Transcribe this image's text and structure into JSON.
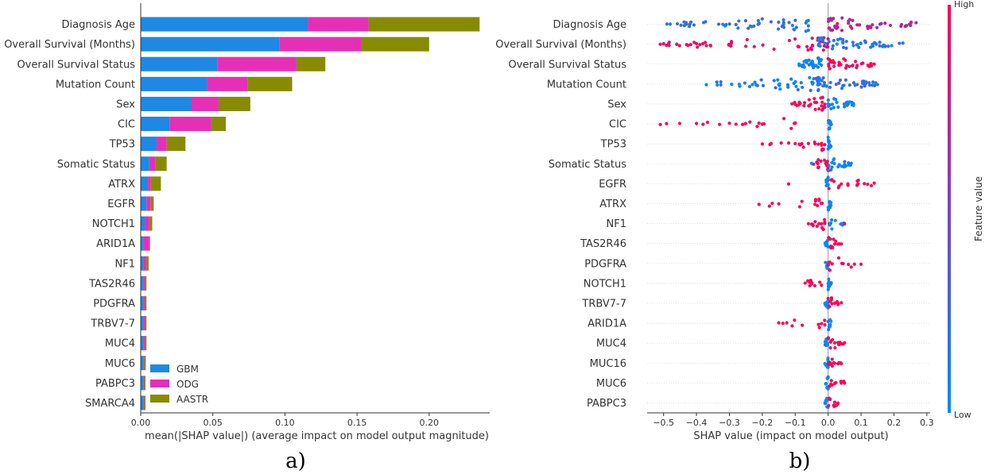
{
  "chart_data": [
    {
      "type": "bar",
      "orientation": "horizontal",
      "stacked": true,
      "panel_label": "a)",
      "xlabel": "mean(|SHAP value|) (average impact on model output magnitude)",
      "xlim": [
        0,
        0.242
      ],
      "xticks": [
        "0.00",
        "0.05",
        "0.10",
        "0.15",
        "0.20"
      ],
      "categories": [
        "Diagnosis Age",
        "Overall Survival (Months)",
        "Overall Survival Status",
        "Mutation Count",
        "Sex",
        "CIC",
        "TP53",
        "Somatic Status",
        "ATRX",
        "EGFR",
        "NOTCH1",
        "ARID1A",
        "NF1",
        "TAS2R46",
        "PDGFRA",
        "TRBV7-7",
        "MUC4",
        "MUC6",
        "PABPC3",
        "SMARCA4"
      ],
      "series": [
        {
          "name": "GBM",
          "color": "#1E88E5",
          "values": [
            0.116,
            0.096,
            0.053,
            0.046,
            0.035,
            0.02,
            0.011,
            0.006,
            0.005,
            0.004,
            0.003,
            0.002,
            0.002,
            0.002,
            0.002,
            0.002,
            0.002,
            0.002,
            0.002,
            0.002
          ]
        },
        {
          "name": "ODG",
          "color": "#E52FB7",
          "values": [
            0.042,
            0.057,
            0.055,
            0.028,
            0.019,
            0.029,
            0.007,
            0.004,
            0.002,
            0.003,
            0.003,
            0.004,
            0.002,
            0.001,
            0.001,
            0.001,
            0.001,
            0.0005,
            0.0005,
            0.0005
          ]
        },
        {
          "name": "AASTR",
          "color": "#868B00",
          "values": [
            0.077,
            0.047,
            0.02,
            0.031,
            0.022,
            0.01,
            0.013,
            0.008,
            0.007,
            0.002,
            0.002,
            0.0005,
            0.0015,
            0.001,
            0.001,
            0.001,
            0.001,
            0.001,
            0.0008,
            0.0008
          ]
        }
      ],
      "legend": {
        "placement": "lower-center",
        "entries": [
          "GBM",
          "ODG",
          "AASTR"
        ]
      }
    },
    {
      "type": "scatter",
      "subtype": "beeswarm",
      "panel_label": "b)",
      "xlabel": "SHAP value (impact on model output)",
      "xlim": [
        -0.55,
        0.31
      ],
      "xticks": [
        "−0.5",
        "−0.4",
        "−0.3",
        "−0.2",
        "−0.1",
        "0.0",
        "0.1",
        "0.2",
        "0.3"
      ],
      "zero_line": true,
      "colorbar": {
        "label": "Feature value",
        "high_label": "High",
        "low_label": "Low",
        "low_color": "#008BFB",
        "high_color": "#FF0052"
      },
      "features": [
        {
          "name": "Diagnosis Age",
          "neg": [
            -0.5,
            -0.06
          ],
          "pos": [
            0.0,
            0.27
          ],
          "neg_val": 0.18,
          "pos_val": 0.7,
          "outliers": [
            [
              -0.49,
              0.1
            ],
            [
              -0.48,
              0.1
            ],
            [
              -0.43,
              0.1
            ],
            [
              -0.42,
              0.1
            ],
            [
              -0.32,
              0.1
            ],
            [
              -0.31,
              0.1
            ],
            [
              -0.28,
              0.3
            ]
          ],
          "density": 80
        },
        {
          "name": "Overall Survival (Months)",
          "neg": [
            -0.52,
            0.0
          ],
          "pos": [
            -0.03,
            0.23
          ],
          "neg_val": 0.88,
          "pos_val": 0.12,
          "outliers": [
            [
              -0.51,
              0.95
            ],
            [
              -0.5,
              0.95
            ],
            [
              -0.46,
              0.95
            ],
            [
              -0.43,
              0.95
            ],
            [
              -0.4,
              0.95
            ],
            [
              -0.39,
              0.95
            ]
          ],
          "density": 85
        },
        {
          "name": "Overall Survival Status",
          "neg": [
            -0.09,
            -0.02
          ],
          "pos": [
            0.0,
            0.14
          ],
          "neg_val": 0.02,
          "pos_val": 0.98,
          "outliers": [
            [
              0.13,
              0.98
            ],
            [
              0.14,
              0.98
            ]
          ],
          "density": 55
        },
        {
          "name": "Mutation Count",
          "neg": [
            -0.37,
            -0.03
          ],
          "pos": [
            -0.03,
            0.15
          ],
          "neg_val": 0.12,
          "pos_val": 0.2,
          "outliers": [
            [
              -0.37,
              0.05
            ],
            [
              -0.27,
              0.05
            ],
            [
              -0.23,
              0.05
            ],
            [
              -0.15,
              0.05
            ],
            [
              0.15,
              0.1
            ]
          ],
          "density": 75
        },
        {
          "name": "Sex",
          "neg": [
            -0.11,
            -0.01
          ],
          "pos": [
            0.0,
            0.08
          ],
          "neg_val": 0.98,
          "pos_val": 0.02,
          "outliers": [
            [
              -0.11,
              1.0
            ],
            [
              -0.1,
              1.0
            ]
          ],
          "density": 45
        },
        {
          "name": "CIC",
          "neg": [
            -0.51,
            -0.1
          ],
          "pos": [
            0.0,
            0.01
          ],
          "neg_val": 1.0,
          "pos_val": 0.02,
          "outliers": [
            [
              -0.51,
              1.0
            ],
            [
              -0.4,
              1.0
            ],
            [
              -0.38,
              1.0
            ],
            [
              -0.33,
              1.0
            ],
            [
              -0.3,
              1.0
            ],
            [
              -0.28,
              1.0
            ],
            [
              -0.26,
              1.0
            ],
            [
              -0.2,
              1.0
            ],
            [
              -0.21,
              1.0
            ],
            [
              -0.1,
              1.0
            ]
          ],
          "density": 20
        },
        {
          "name": "TP53",
          "neg": [
            -0.2,
            -0.01
          ],
          "pos": [
            0.0,
            0.01
          ],
          "neg_val": 1.0,
          "pos_val": 0.02,
          "outliers": [
            [
              -0.2,
              1.0
            ],
            [
              -0.12,
              1.0
            ],
            [
              -0.1,
              1.0
            ],
            [
              -0.08,
              1.0
            ],
            [
              -0.06,
              1.0
            ],
            [
              -0.04,
              1.0
            ],
            [
              -0.03,
              1.0
            ],
            [
              -0.02,
              1.0
            ]
          ],
          "density": 22
        },
        {
          "name": "Somatic Status",
          "neg": [
            -0.05,
            0.0
          ],
          "pos": [
            0.0,
            0.07
          ],
          "neg_val": 0.95,
          "pos_val": 0.05,
          "outliers": [
            [
              -0.05,
              0.05
            ],
            [
              0.05,
              0.05
            ],
            [
              0.07,
              0.05
            ]
          ],
          "density": 30
        },
        {
          "name": "EGFR",
          "neg": [
            -0.01,
            0.0
          ],
          "pos": [
            0.0,
            0.14
          ],
          "neg_val": 0.02,
          "pos_val": 1.0,
          "outliers": [
            [
              -0.12,
              1.0
            ],
            [
              0.04,
              1.0
            ],
            [
              0.06,
              1.0
            ],
            [
              0.09,
              1.0
            ],
            [
              0.11,
              1.0
            ],
            [
              0.12,
              1.0
            ],
            [
              0.14,
              1.0
            ]
          ],
          "density": 22
        },
        {
          "name": "ATRX",
          "neg": [
            -0.21,
            -0.01
          ],
          "pos": [
            0.0,
            0.01
          ],
          "neg_val": 1.0,
          "pos_val": 0.02,
          "outliers": [
            [
              -0.21,
              1.0
            ],
            [
              -0.17,
              1.0
            ],
            [
              -0.15,
              1.0
            ],
            [
              -0.04,
              1.0
            ]
          ],
          "density": 18
        },
        {
          "name": "NF1",
          "neg": [
            -0.06,
            -0.01
          ],
          "pos": [
            0.0,
            0.05
          ],
          "neg_val": 1.0,
          "pos_val": 0.02,
          "outliers": [
            [
              -0.06,
              1.0
            ],
            [
              -0.05,
              1.0
            ],
            [
              -0.02,
              1.0
            ],
            [
              0.05,
              1.0
            ]
          ],
          "density": 18
        },
        {
          "name": "TAS2R46",
          "neg": [
            -0.01,
            0.0
          ],
          "pos": [
            0.0,
            0.04
          ],
          "neg_val": 0.02,
          "pos_val": 1.0,
          "outliers": [
            [
              0.02,
              1.0
            ],
            [
              0.03,
              1.0
            ],
            [
              0.04,
              1.0
            ]
          ],
          "density": 16
        },
        {
          "name": "PDGFRA",
          "neg": [
            -0.01,
            0.0
          ],
          "pos": [
            0.0,
            0.11
          ],
          "neg_val": 0.02,
          "pos_val": 1.0,
          "outliers": [
            [
              0.08,
              1.0
            ],
            [
              0.1,
              1.0
            ]
          ],
          "density": 16
        },
        {
          "name": "NOTCH1",
          "neg": [
            -0.07,
            -0.01
          ],
          "pos": [
            0.0,
            0.01
          ],
          "neg_val": 1.0,
          "pos_val": 0.02,
          "outliers": [
            [
              -0.07,
              1.0
            ],
            [
              -0.05,
              1.0
            ]
          ],
          "density": 16
        },
        {
          "name": "TRBV7-7",
          "neg": [
            -0.01,
            0.0
          ],
          "pos": [
            0.0,
            0.04
          ],
          "neg_val": 0.02,
          "pos_val": 1.0,
          "outliers": [
            [
              0.02,
              1.0
            ],
            [
              0.03,
              1.0
            ],
            [
              0.04,
              1.0
            ]
          ],
          "density": 16
        },
        {
          "name": "ARID1A",
          "neg": [
            -0.15,
            -0.01
          ],
          "pos": [
            0.0,
            0.01
          ],
          "neg_val": 1.0,
          "pos_val": 0.02,
          "outliers": [
            [
              -0.15,
              1.0
            ],
            [
              -0.02,
              1.0
            ]
          ],
          "density": 16
        },
        {
          "name": "MUC4",
          "neg": [
            -0.01,
            0.0
          ],
          "pos": [
            0.0,
            0.05
          ],
          "neg_val": 0.02,
          "pos_val": 1.0,
          "outliers": [
            [
              0.02,
              1.0
            ],
            [
              0.03,
              1.0
            ],
            [
              0.04,
              1.0
            ],
            [
              0.05,
              1.0
            ]
          ],
          "density": 18
        },
        {
          "name": "MUC16",
          "neg": [
            -0.01,
            0.0
          ],
          "pos": [
            0.0,
            0.04
          ],
          "neg_val": 0.02,
          "pos_val": 1.0,
          "outliers": [
            [
              0.02,
              1.0
            ],
            [
              0.03,
              1.0
            ],
            [
              0.04,
              1.0
            ]
          ],
          "density": 16
        },
        {
          "name": "MUC6",
          "neg": [
            -0.01,
            0.0
          ],
          "pos": [
            0.0,
            0.05
          ],
          "neg_val": 0.02,
          "pos_val": 1.0,
          "outliers": [
            [
              0.02,
              1.0
            ],
            [
              0.04,
              1.0
            ],
            [
              0.05,
              1.0
            ]
          ],
          "density": 16
        },
        {
          "name": "PABPC3",
          "neg": [
            -0.01,
            0.0
          ],
          "pos": [
            0.0,
            0.03
          ],
          "neg_val": 0.02,
          "pos_val": 1.0,
          "outliers": [
            [
              0.02,
              1.0
            ],
            [
              0.03,
              1.0
            ]
          ],
          "density": 16
        }
      ]
    }
  ]
}
